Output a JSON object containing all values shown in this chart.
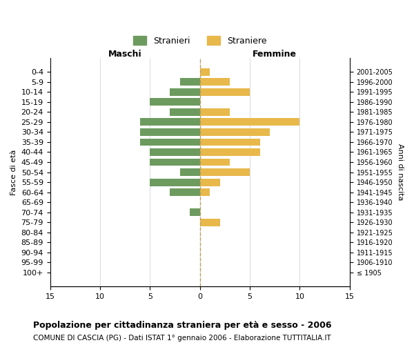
{
  "age_groups": [
    "100+",
    "95-99",
    "90-94",
    "85-89",
    "80-84",
    "75-79",
    "70-74",
    "65-69",
    "60-64",
    "55-59",
    "50-54",
    "45-49",
    "40-44",
    "35-39",
    "30-34",
    "25-29",
    "20-24",
    "15-19",
    "10-14",
    "5-9",
    "0-4"
  ],
  "birth_years": [
    "≤ 1905",
    "1906-1910",
    "1911-1915",
    "1916-1920",
    "1921-1925",
    "1926-1930",
    "1931-1935",
    "1936-1940",
    "1941-1945",
    "1946-1950",
    "1951-1955",
    "1956-1960",
    "1961-1965",
    "1966-1970",
    "1971-1975",
    "1976-1980",
    "1981-1985",
    "1986-1990",
    "1991-1995",
    "1996-2000",
    "2001-2005"
  ],
  "maschi": [
    0,
    0,
    0,
    0,
    0,
    0,
    1,
    0,
    3,
    5,
    2,
    5,
    5,
    6,
    6,
    6,
    3,
    5,
    3,
    2,
    0
  ],
  "femmine": [
    0,
    0,
    0,
    0,
    0,
    2,
    0,
    0,
    1,
    2,
    5,
    3,
    6,
    6,
    7,
    10,
    3,
    0,
    5,
    3,
    1
  ],
  "maschi_color": "#6d9b5f",
  "femmine_color": "#e8b84b",
  "background_color": "#ffffff",
  "grid_color": "#cccccc",
  "dashed_line_color": "#b8a060",
  "title": "Popolazione per cittadinanza straniera per età e sesso - 2006",
  "subtitle": "COMUNE DI CASCIA (PG) - Dati ISTAT 1° gennaio 2006 - Elaborazione TUTTITALIA.IT",
  "xlabel_left": "Maschi",
  "xlabel_right": "Femmine",
  "ylabel_left": "Fasce di età",
  "ylabel_right": "Anni di nascita",
  "legend_maschi": "Stranieri",
  "legend_femmine": "Straniere",
  "xlim": 15,
  "xticks": [
    -15,
    -10,
    -5,
    0,
    5,
    10,
    15
  ],
  "xticklabels": [
    "15",
    "10",
    "5",
    "0",
    "5",
    "10",
    "15"
  ]
}
